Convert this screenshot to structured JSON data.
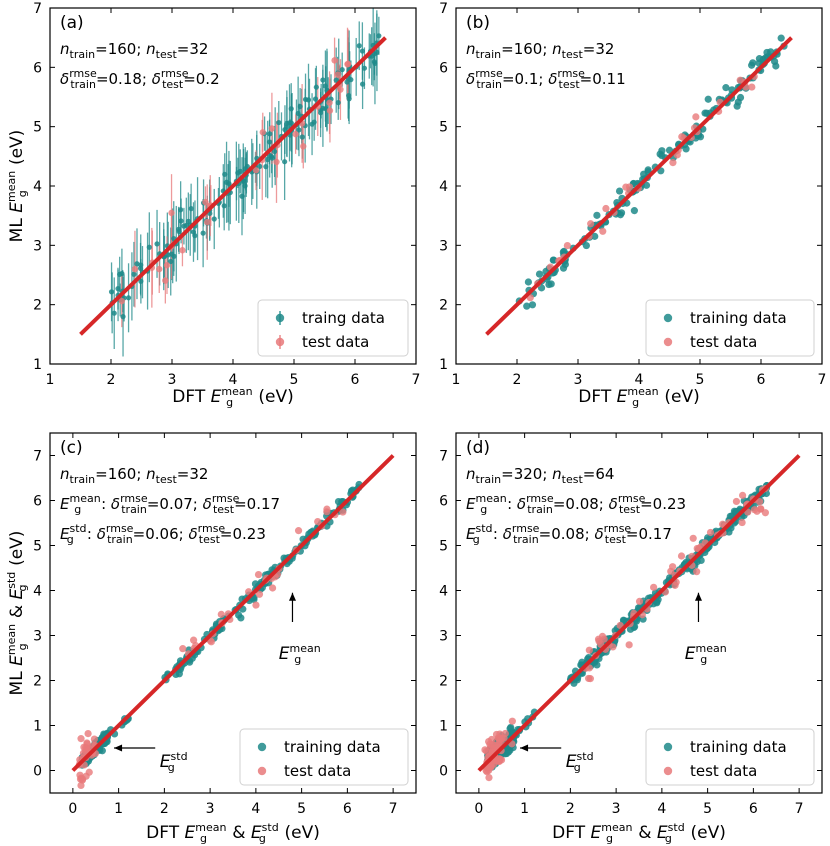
{
  "colors": {
    "train": "#1f8a8a",
    "test": "#e8797a",
    "fit": "#d62728",
    "legend_border": "#cccccc"
  },
  "chart_data": [
    {
      "type": "scatter",
      "panel_label": "(a)",
      "xlabel": {
        "prefix": "DFT ",
        "sym": "E",
        "sub": "g",
        "sup": "mean",
        "suffix": " (eV)"
      },
      "ylabel": {
        "prefix": "ML ",
        "sym": "E",
        "sub": "g",
        "sup": "mean",
        "suffix": " (eV)"
      },
      "xlim": [
        1,
        7
      ],
      "ylim": [
        1,
        7
      ],
      "xticks": [
        "1",
        "2",
        "3",
        "4",
        "5",
        "6",
        "7"
      ],
      "yticks": [
        "1",
        "2",
        "3",
        "4",
        "5",
        "6",
        "7"
      ],
      "fit_line": [
        [
          1.5,
          1.5
        ],
        [
          6.5,
          6.5
        ]
      ],
      "annotations": [
        [
          {
            "t": "n",
            "italic": true
          },
          {
            "t": "train",
            "sub": true
          },
          {
            "t": "=160; "
          },
          {
            "t": "n",
            "italic": true
          },
          {
            "t": "test",
            "sub": true
          },
          {
            "t": "=32"
          }
        ],
        [
          {
            "t": "δ",
            "italic": true
          },
          {
            "t": "train",
            "subsup": "rmse"
          },
          {
            "t": "=0.18; "
          },
          {
            "t": "δ",
            "italic": true
          },
          {
            "t": "test",
            "subsup": "rmse"
          },
          {
            "t": "=0.2"
          }
        ]
      ],
      "errorbars": true,
      "legend": [
        "traing data",
        "test data"
      ],
      "series": [
        {
          "name": "traing data",
          "n": 160,
          "rmse": 0.18,
          "x_range": [
            2.0,
            6.4
          ]
        },
        {
          "name": "test data",
          "n": 32,
          "rmse": 0.2,
          "x_range": [
            2.1,
            6.0
          ]
        }
      ],
      "arrows": []
    },
    {
      "type": "scatter",
      "panel_label": "(b)",
      "xlabel": {
        "prefix": "DFT ",
        "sym": "E",
        "sub": "g",
        "sup": "mean",
        "suffix": " (eV)"
      },
      "ylabel": null,
      "xlim": [
        1,
        7
      ],
      "ylim": [
        1,
        7
      ],
      "xticks": [
        "1",
        "2",
        "3",
        "4",
        "5",
        "6",
        "7"
      ],
      "yticks": [
        "1",
        "2",
        "3",
        "4",
        "5",
        "6",
        "7"
      ],
      "fit_line": [
        [
          1.5,
          1.5
        ],
        [
          6.5,
          6.5
        ]
      ],
      "annotations": [
        [
          {
            "t": "n",
            "italic": true
          },
          {
            "t": "train",
            "sub": true
          },
          {
            "t": "=160; "
          },
          {
            "t": "n",
            "italic": true
          },
          {
            "t": "test",
            "sub": true
          },
          {
            "t": "=32"
          }
        ],
        [
          {
            "t": "δ",
            "italic": true
          },
          {
            "t": "train",
            "subsup": "rmse"
          },
          {
            "t": "=0.1; "
          },
          {
            "t": "δ",
            "italic": true
          },
          {
            "t": "test",
            "subsup": "rmse"
          },
          {
            "t": "=0.11"
          }
        ]
      ],
      "errorbars": false,
      "legend": [
        "training data",
        "test data"
      ],
      "series": [
        {
          "name": "training data",
          "n": 160,
          "rmse": 0.1,
          "x_range": [
            2.0,
            6.4
          ]
        },
        {
          "name": "test data",
          "n": 32,
          "rmse": 0.11,
          "x_range": [
            2.1,
            6.0
          ]
        }
      ],
      "arrows": []
    },
    {
      "type": "scatter",
      "panel_label": "(c)",
      "xlabel": {
        "prefix": "DFT ",
        "sym": "E",
        "sub": "g",
        "sup": "mean",
        "mid": " & ",
        "sym2": "E",
        "sub2": "g",
        "sup2": "std",
        "suffix": " (eV)"
      },
      "ylabel": {
        "prefix": "ML ",
        "sym": "E",
        "sub": "g",
        "sup": "mean",
        "mid": " & ",
        "sym2": "E",
        "sub2": "g",
        "sup2": "std",
        "suffix": " (eV)"
      },
      "xlim": [
        -0.5,
        7.5
      ],
      "ylim": [
        -0.5,
        7.5
      ],
      "xticks": [
        "0",
        "1",
        "2",
        "3",
        "4",
        "5",
        "6",
        "7"
      ],
      "yticks": [
        "0",
        "1",
        "2",
        "3",
        "4",
        "5",
        "6",
        "7"
      ],
      "fit_line": [
        [
          0,
          0
        ],
        [
          7,
          7
        ]
      ],
      "annotations": [
        [
          {
            "t": "n",
            "italic": true
          },
          {
            "t": "train",
            "sub": true
          },
          {
            "t": "=160; "
          },
          {
            "t": "n",
            "italic": true
          },
          {
            "t": "test",
            "sub": true
          },
          {
            "t": "=32"
          }
        ],
        [
          {
            "t": "E",
            "italic": true
          },
          {
            "t": "g",
            "subsup": "mean"
          },
          {
            "t": ": "
          },
          {
            "t": "δ",
            "italic": true
          },
          {
            "t": "train",
            "subsup": "rmse"
          },
          {
            "t": "=0.07; "
          },
          {
            "t": "δ",
            "italic": true
          },
          {
            "t": "test",
            "subsup": "rmse"
          },
          {
            "t": "=0.17"
          }
        ],
        [
          {
            "t": "E",
            "italic": true
          },
          {
            "t": "g",
            "subsup": "std"
          },
          {
            "t": ": "
          },
          {
            "t": "δ",
            "italic": true
          },
          {
            "t": "train",
            "subsup": "rmse"
          },
          {
            "t": "=0.06; "
          },
          {
            "t": "δ",
            "italic": true
          },
          {
            "t": "test",
            "subsup": "rmse"
          },
          {
            "t": "=0.23"
          }
        ]
      ],
      "errorbars": false,
      "legend": [
        "training data",
        "test data"
      ],
      "series": [
        {
          "name": "training data",
          "n": 160,
          "rmse_mean": 0.07,
          "rmse_std": 0.06,
          "x_range_mean": [
            2.0,
            6.3
          ],
          "x_range_std": [
            0.0,
            1.2
          ]
        },
        {
          "name": "test data",
          "n": 32,
          "rmse_mean": 0.17,
          "rmse_std": 0.23,
          "x_range_mean": [
            2.3,
            6.1
          ],
          "x_range_std": [
            0.0,
            0.8
          ]
        }
      ],
      "arrows": [
        {
          "label_sup": "mean",
          "label_sym": "E",
          "label_sub": "g",
          "tip": [
            4.8,
            3.95
          ],
          "tail": [
            4.8,
            3.3
          ],
          "text_at": [
            4.5,
            2.75
          ]
        },
        {
          "label_sup": "std",
          "label_sym": "E",
          "label_sub": "g",
          "tip": [
            0.9,
            0.5
          ],
          "tail": [
            1.8,
            0.5
          ],
          "text_at": [
            1.9,
            0.35
          ]
        }
      ]
    },
    {
      "type": "scatter",
      "panel_label": "(d)",
      "xlabel": {
        "prefix": "DFT ",
        "sym": "E",
        "sub": "g",
        "sup": "mean",
        "mid": " & ",
        "sym2": "E",
        "sub2": "g",
        "sup2": "std",
        "suffix": " (eV)"
      },
      "ylabel": null,
      "xlim": [
        -0.5,
        7.5
      ],
      "ylim": [
        -0.5,
        7.5
      ],
      "xticks": [
        "0",
        "1",
        "2",
        "3",
        "4",
        "5",
        "6",
        "7"
      ],
      "yticks": [
        "0",
        "1",
        "2",
        "3",
        "4",
        "5",
        "6",
        "7"
      ],
      "fit_line": [
        [
          0,
          0
        ],
        [
          7,
          7
        ]
      ],
      "annotations": [
        [
          {
            "t": "n",
            "italic": true
          },
          {
            "t": "train",
            "sub": true
          },
          {
            "t": "=320; "
          },
          {
            "t": "n",
            "italic": true
          },
          {
            "t": "test",
            "sub": true
          },
          {
            "t": "=64"
          }
        ],
        [
          {
            "t": "E",
            "italic": true
          },
          {
            "t": "g",
            "subsup": "mean"
          },
          {
            "t": ": "
          },
          {
            "t": "δ",
            "italic": true
          },
          {
            "t": "train",
            "subsup": "rmse"
          },
          {
            "t": "=0.08; "
          },
          {
            "t": "δ",
            "italic": true
          },
          {
            "t": "test",
            "subsup": "rmse"
          },
          {
            "t": "=0.23"
          }
        ],
        [
          {
            "t": "E",
            "italic": true
          },
          {
            "t": "g",
            "subsup": "std"
          },
          {
            "t": ": "
          },
          {
            "t": "δ",
            "italic": true
          },
          {
            "t": "train",
            "subsup": "rmse"
          },
          {
            "t": "=0.08; "
          },
          {
            "t": "δ",
            "italic": true
          },
          {
            "t": "test",
            "subsup": "rmse"
          },
          {
            "t": "=0.17"
          }
        ]
      ],
      "errorbars": false,
      "legend": [
        "training data",
        "test data"
      ],
      "series": [
        {
          "name": "training data",
          "n": 320,
          "rmse_mean": 0.08,
          "rmse_std": 0.08,
          "x_range_mean": [
            2.0,
            6.3
          ],
          "x_range_std": [
            0.0,
            1.2
          ]
        },
        {
          "name": "test data",
          "n": 64,
          "rmse_mean": 0.23,
          "rmse_std": 0.17,
          "x_range_mean": [
            2.3,
            6.3
          ],
          "x_range_std": [
            0.0,
            0.8
          ]
        }
      ],
      "arrows": [
        {
          "label_sup": "mean",
          "label_sym": "E",
          "label_sub": "g",
          "tip": [
            4.8,
            3.95
          ],
          "tail": [
            4.8,
            3.3
          ],
          "text_at": [
            4.5,
            2.75
          ]
        },
        {
          "label_sup": "std",
          "label_sym": "E",
          "label_sub": "g",
          "tip": [
            0.9,
            0.5
          ],
          "tail": [
            1.8,
            0.5
          ],
          "text_at": [
            1.9,
            0.35
          ]
        }
      ]
    }
  ]
}
